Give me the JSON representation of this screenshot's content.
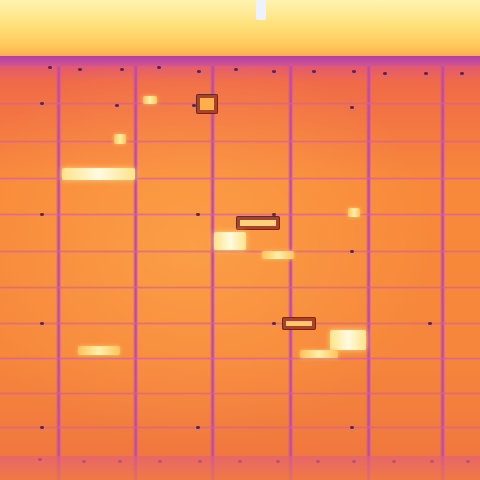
{
  "image": {
    "subject": "thermal-solar-panel-array",
    "palette": {
      "cool": "#b845b5",
      "mid": "#f6863b",
      "warm": "#ffc25a",
      "hot": "#fffbe0"
    }
  }
}
